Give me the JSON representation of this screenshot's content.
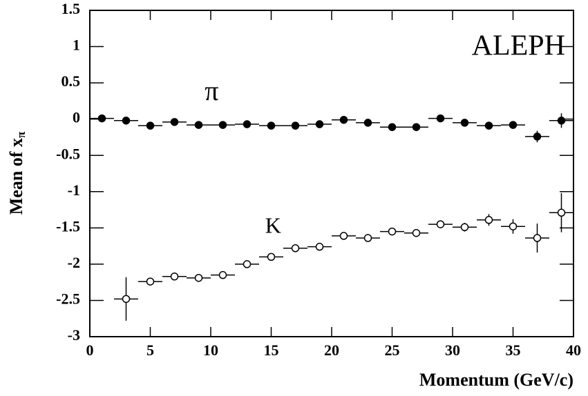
{
  "chart_data": {
    "type": "scatter",
    "xlabel": "Momentum (GeV/c)",
    "ylabel": "Mean of x",
    "ylabel_subscript": "π",
    "annotations": [
      "π",
      "K",
      "ALEPH"
    ],
    "xlim": [
      0,
      40
    ],
    "xticks": [
      0,
      5,
      10,
      15,
      20,
      25,
      30,
      35,
      40
    ],
    "ylim": [
      -3,
      1.5
    ],
    "yticks": [
      1.5,
      1,
      0.5,
      0,
      -0.5,
      -1,
      -1.5,
      -2,
      -2.5,
      -3
    ],
    "series": [
      {
        "name": "π",
        "color": "#000000",
        "filled": true,
        "x": [
          1,
          3,
          5,
          7,
          9,
          11,
          13,
          15,
          17,
          19,
          21,
          23,
          25,
          27,
          29,
          31,
          33,
          35,
          37,
          39
        ],
        "values": [
          0.01,
          -0.02,
          -0.09,
          -0.04,
          -0.08,
          -0.08,
          -0.07,
          -0.09,
          -0.09,
          -0.07,
          -0.01,
          -0.05,
          -0.11,
          -0.11,
          0.01,
          -0.05,
          -0.09,
          -0.08,
          -0.24,
          -0.02
        ],
        "xerr": [
          1,
          1,
          1,
          1,
          1,
          1,
          1,
          1,
          1,
          1,
          1,
          1,
          1,
          1,
          1,
          1,
          1,
          1,
          1,
          1
        ],
        "yerr": [
          0.02,
          0.02,
          0.02,
          0.02,
          0.02,
          0.02,
          0.02,
          0.02,
          0.02,
          0.02,
          0.02,
          0.02,
          0.02,
          0.02,
          0.02,
          0.03,
          0.03,
          0.05,
          0.08,
          0.1
        ]
      },
      {
        "name": "K",
        "color": "#000000",
        "filled": false,
        "x": [
          3,
          5,
          7,
          9,
          11,
          13,
          15,
          17,
          19,
          21,
          23,
          25,
          27,
          29,
          31,
          33,
          35,
          37,
          39
        ],
        "values": [
          -2.48,
          -2.24,
          -2.17,
          -2.19,
          -2.15,
          -2.0,
          -1.9,
          -1.78,
          -1.76,
          -1.61,
          -1.64,
          -1.55,
          -1.57,
          -1.45,
          -1.49,
          -1.39,
          -1.48,
          -1.64,
          -1.29
        ],
        "xerr": [
          1,
          1,
          1,
          1,
          1,
          1,
          1,
          1,
          1,
          1,
          1,
          1,
          1,
          1,
          1,
          1,
          1,
          1,
          1
        ],
        "yerr": [
          0.3,
          0.05,
          0.03,
          0.03,
          0.03,
          0.03,
          0.03,
          0.03,
          0.03,
          0.03,
          0.03,
          0.03,
          0.03,
          0.03,
          0.06,
          0.08,
          0.1,
          0.2,
          0.27
        ]
      }
    ]
  }
}
